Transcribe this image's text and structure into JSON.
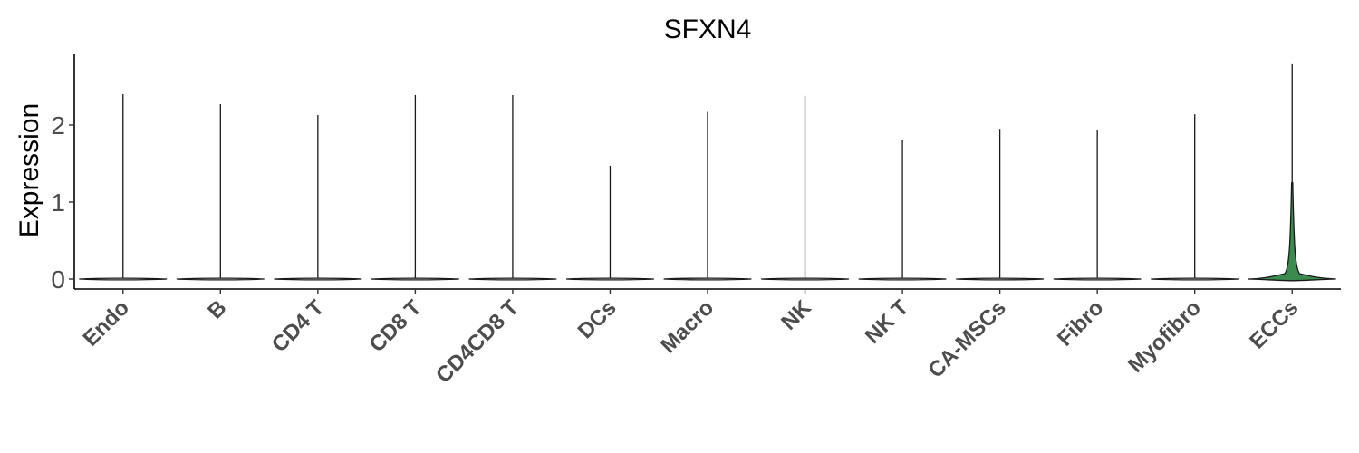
{
  "chart_data": {
    "type": "violin",
    "title": "SFXN4",
    "xlabel": "",
    "ylabel": "Expression",
    "ylim": [
      -0.12,
      3.07
    ],
    "yticks": [
      "0",
      "1",
      "2"
    ],
    "grid": false,
    "legend": "none",
    "categories": [
      "Endo",
      "B",
      "CD4 T",
      "CD8 T",
      "CD4CD8 T",
      "DCs",
      "Macro",
      "NK",
      "NK T",
      "CA-MSCs",
      "Fibro",
      "Myofibro",
      "ECCs"
    ],
    "max_values": [
      2.4,
      2.27,
      2.13,
      2.39,
      2.39,
      1.47,
      2.17,
      2.38,
      1.81,
      1.95,
      1.93,
      2.14,
      2.79
    ],
    "fill_color": "#ffffff",
    "highlight_category": "ECCs",
    "highlight_color": "#3b8a4f"
  }
}
